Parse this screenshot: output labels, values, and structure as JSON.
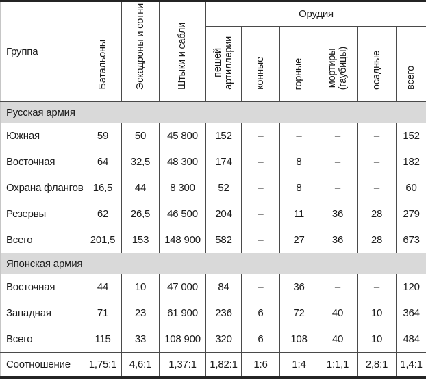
{
  "colors": {
    "text": "#1b1b1b",
    "thin_border": "#4a4a4a",
    "thick_border": "#242424",
    "section_band_bg": "#d9d9d9"
  },
  "table": {
    "header": {
      "group": "Группа",
      "battalions": "Батальоны",
      "squadrons": "Эскадроны и сотни",
      "bayonets": "Штыки и сабли",
      "guns_group": "Орудия",
      "gun_columns": [
        "пешей\nартиллерии",
        "конные",
        "горные",
        "мортиры\n(гаубицы)",
        "осадные",
        "всего"
      ]
    },
    "sections": [
      {
        "title": "Русская армия",
        "rows": [
          {
            "label": "Южная",
            "values": [
              "59",
              "50",
              "45 800",
              "152",
              "–",
              "–",
              "–",
              "–",
              "152"
            ]
          },
          {
            "label": "Восточная",
            "values": [
              "64",
              "32,5",
              "48 300",
              "174",
              "–",
              "8",
              "–",
              "–",
              "182"
            ]
          },
          {
            "label": "Охрана флангов",
            "values": [
              "16,5",
              "44",
              "8 300",
              "52",
              "–",
              "8",
              "–",
              "–",
              "60"
            ]
          },
          {
            "label": "Резервы",
            "values": [
              "62",
              "26,5",
              "46 500",
              "204",
              "–",
              "11",
              "36",
              "28",
              "279"
            ]
          },
          {
            "label": "Всего",
            "values": [
              "201,5",
              "153",
              "148 900",
              "582",
              "–",
              "27",
              "36",
              "28",
              "673"
            ]
          }
        ]
      },
      {
        "title": "Японская армия",
        "rows": [
          {
            "label": "Восточная",
            "values": [
              "44",
              "10",
              "47 000",
              "84",
              "–",
              "36",
              "–",
              "–",
              "120"
            ]
          },
          {
            "label": "Западная",
            "values": [
              "71",
              "23",
              "61 900",
              "236",
              "6",
              "72",
              "40",
              "10",
              "364"
            ]
          },
          {
            "label": "Всего",
            "values": [
              "115",
              "33",
              "108 900",
              "320",
              "6",
              "108",
              "40",
              "10",
              "484"
            ]
          }
        ]
      }
    ],
    "footer": {
      "label": "Соотношение",
      "values": [
        "1,75:1",
        "4,6:1",
        "1,37:1",
        "1,82:1",
        "1:6",
        "1:4",
        "1:1,1",
        "2,8:1",
        "1,4:1"
      ]
    }
  }
}
